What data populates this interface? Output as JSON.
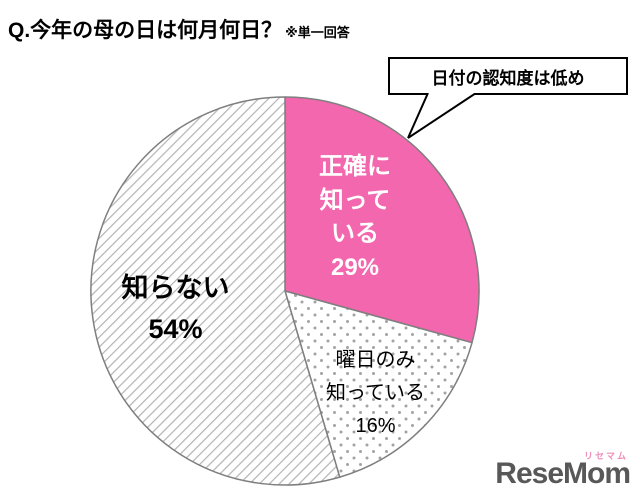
{
  "title": {
    "question": "Q.今年の母の日は何月何日？",
    "note": "※単一回答"
  },
  "callout": {
    "text": "日付の認知度は低め"
  },
  "chart_data": {
    "type": "pie",
    "title": "Q.今年の母の日は何月何日？",
    "note": "※単一回答",
    "start_angle": "top",
    "direction": "clockwise",
    "slices": [
      {
        "label": "正確に知っている",
        "value": 29,
        "style": "solid-pink",
        "text_color": "#ffffff"
      },
      {
        "label": "曜日のみ知っている",
        "value": 16,
        "style": "dotted",
        "text_color": "#000000"
      },
      {
        "label": "知らない",
        "value": 54,
        "style": "diagonal-hatch",
        "text_color": "#000000"
      }
    ],
    "annotation": {
      "text": "日付の認知度は低め",
      "points_to": "正確に知っている"
    }
  },
  "labels": {
    "accurate": {
      "lines": [
        "正確に",
        "知って",
        "いる",
        "29%"
      ]
    },
    "unknown": {
      "lines": [
        "知らない",
        "54%"
      ]
    },
    "weekday": {
      "lines": [
        "曜日のみ",
        "知っている",
        "16%"
      ]
    }
  },
  "colors": {
    "pink": "#f267ad",
    "outline": "#7f7f7f",
    "hatch_line": "#b3b3b3",
    "dot": "#a3a3a3",
    "callout_border": "#000000",
    "logo_gray": "#585858",
    "logo_pink": "#f08db8"
  },
  "logo": {
    "text": "ReseMom",
    "ruby": "リセマム"
  }
}
